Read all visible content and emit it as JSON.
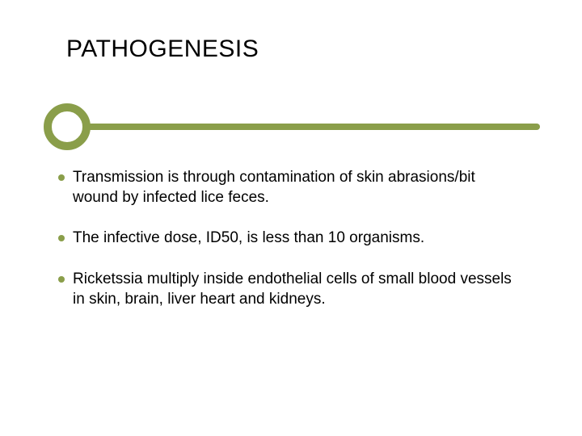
{
  "title": "PATHOGENESIS",
  "accent_color": "#8a9e4a",
  "background_color": "#ffffff",
  "text_color": "#000000",
  "title_fontsize": 30,
  "body_fontsize": 19,
  "bar": {
    "knob_border_width": 10,
    "knob_diameter": 58,
    "line_height": 8
  },
  "bullets": [
    "Transmission is through contamination of skin abrasions/bit wound by infected lice feces.",
    "The infective dose, ID50, is less than 10 organisms.",
    "Ricketssia multiply inside endothelial cells of small blood vessels in skin, brain, liver heart and kidneys."
  ]
}
